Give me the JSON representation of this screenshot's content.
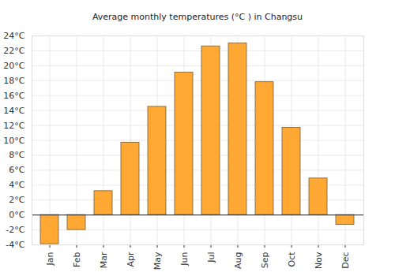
{
  "chart_data": {
    "type": "bar",
    "title": "Average monthly temperatures (°C ) in Changsu",
    "categories": [
      "Jan",
      "Feb",
      "Mar",
      "Apr",
      "May",
      "Jun",
      "Jul",
      "Aug",
      "Sep",
      "Oct",
      "Nov",
      "Dec"
    ],
    "values": [
      -3.9,
      -2.0,
      3.2,
      9.7,
      14.5,
      19.1,
      22.6,
      23.0,
      17.8,
      11.7,
      4.9,
      -1.3
    ],
    "color": "#ffa834",
    "ylim": [
      -4,
      24
    ],
    "yticks": [
      {
        "value": -4,
        "label": "-4°C"
      },
      {
        "value": -2,
        "label": "-2°C"
      },
      {
        "value": 0,
        "label": "0°C"
      },
      {
        "value": 2,
        "label": "2°C"
      },
      {
        "value": 4,
        "label": "4°C"
      },
      {
        "value": 6,
        "label": "6°C"
      },
      {
        "value": 8,
        "label": "8°C"
      },
      {
        "value": 10,
        "label": "10°C"
      },
      {
        "value": 12,
        "label": "12°C"
      },
      {
        "value": 14,
        "label": "14°C"
      },
      {
        "value": 16,
        "label": "16°C"
      },
      {
        "value": 18,
        "label": "18°C"
      },
      {
        "value": 20,
        "label": "20°C"
      },
      {
        "value": 22,
        "label": "22°C"
      },
      {
        "value": 24,
        "label": "24°C"
      }
    ],
    "grid": true
  }
}
